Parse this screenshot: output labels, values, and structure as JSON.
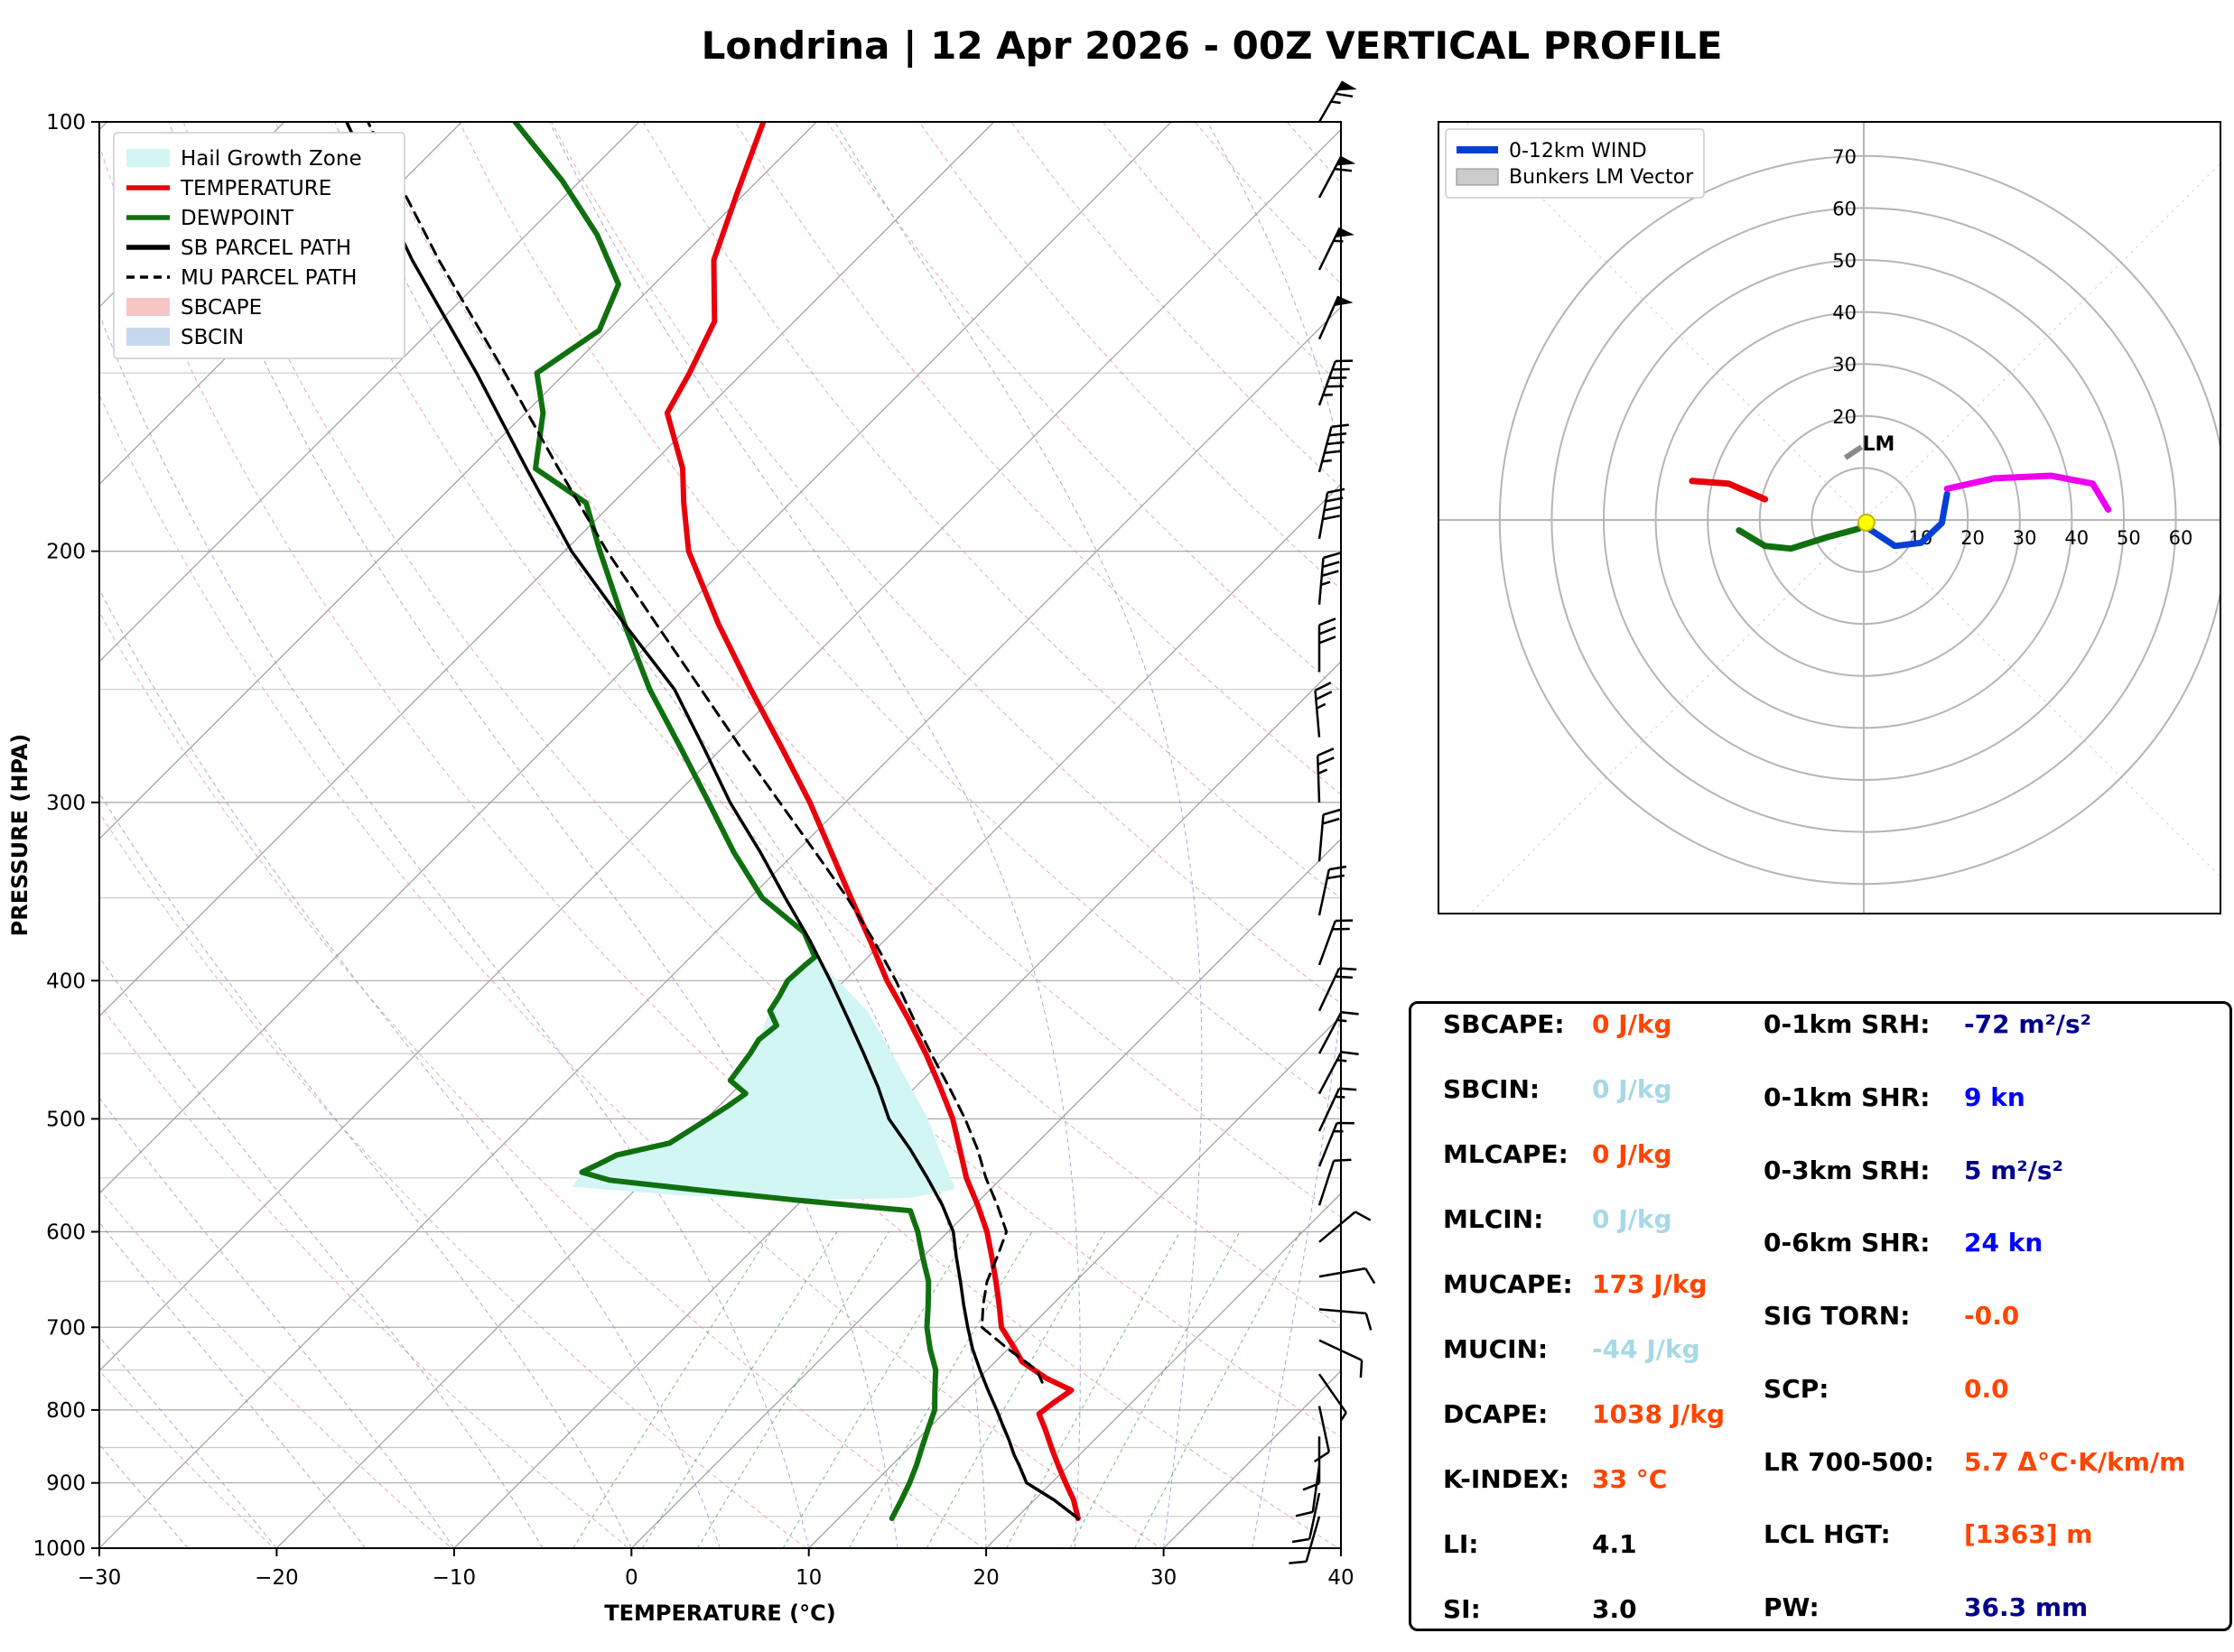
{
  "title": "Londrina | 12 Apr 2026 - 00Z VERTICAL PROFILE",
  "chart_data": [
    {
      "type": "line",
      "name": "skew-t-log-p",
      "xlabel": "TEMPERATURE (°C)",
      "ylabel": "PRESSURE (HPA)",
      "xlim": [
        -30,
        40
      ],
      "plim": [
        100,
        1000
      ],
      "x_ticks": [
        -30,
        -20,
        -10,
        0,
        10,
        20,
        30,
        40
      ],
      "p_ticks": [
        100,
        200,
        300,
        400,
        500,
        600,
        700,
        800,
        900,
        1000
      ],
      "legend": [
        {
          "label": "Hail Growth Zone",
          "kind": "patch",
          "color": "#d2f6f4"
        },
        {
          "label": "TEMPERATURE",
          "kind": "line",
          "color": "#e8000b"
        },
        {
          "label": "DEWPOINT",
          "kind": "line",
          "color": "#107010"
        },
        {
          "label": "SB PARCEL PATH",
          "kind": "line",
          "color": "#000000"
        },
        {
          "label": "MU PARCEL PATH",
          "kind": "line",
          "color": "#000000",
          "dash": true
        },
        {
          "label": "SBCAPE",
          "kind": "patch",
          "color": "#f6c6c6"
        },
        {
          "label": "SBCIN",
          "kind": "patch",
          "color": "#c6d8f0"
        }
      ],
      "series": [
        {
          "name": "TEMPERATURE",
          "color": "#e8000b",
          "width": 6,
          "points": [
            [
              953,
              23.5
            ],
            [
              925,
              22.2
            ],
            [
              900,
              20.8
            ],
            [
              875,
              19.4
            ],
            [
              850,
              18
            ],
            [
              825,
              16.6
            ],
            [
              805,
              15.4
            ],
            [
              790,
              15.6
            ],
            [
              775,
              15.9
            ],
            [
              760,
              13.8
            ],
            [
              740,
              11.5
            ],
            [
              720,
              10
            ],
            [
              700,
              8.4
            ],
            [
              675,
              7
            ],
            [
              650,
              5.5
            ],
            [
              625,
              3.9
            ],
            [
              600,
              2.2
            ],
            [
              575,
              0.2
            ],
            [
              550,
              -2
            ],
            [
              525,
              -4
            ],
            [
              500,
              -6.1
            ],
            [
              475,
              -8.6
            ],
            [
              450,
              -11.3
            ],
            [
              425,
              -14.3
            ],
            [
              400,
              -17.6
            ],
            [
              375,
              -20.8
            ],
            [
              350,
              -24.3
            ],
            [
              325,
              -28
            ],
            [
              300,
              -32
            ],
            [
              275,
              -36.6
            ],
            [
              250,
              -41.7
            ],
            [
              225,
              -47.2
            ],
            [
              200,
              -53
            ],
            [
              185,
              -56
            ],
            [
              175,
              -58
            ],
            [
              160,
              -62
            ],
            [
              150,
              -63
            ],
            [
              138,
              -64.5
            ],
            [
              125,
              -68
            ],
            [
              112,
              -70.5
            ],
            [
              100,
              -73
            ]
          ]
        },
        {
          "name": "DEWPOINT",
          "color": "#107010",
          "width": 6,
          "points": [
            [
              953,
              13
            ],
            [
              925,
              12.5
            ],
            [
              900,
              12
            ],
            [
              875,
              11.4
            ],
            [
              850,
              10.7
            ],
            [
              825,
              10
            ],
            [
              800,
              9.3
            ],
            [
              775,
              8.2
            ],
            [
              750,
              7.1
            ],
            [
              725,
              5.6
            ],
            [
              700,
              4.2
            ],
            [
              675,
              3
            ],
            [
              650,
              1.7
            ],
            [
              625,
              0
            ],
            [
              600,
              -1.7
            ],
            [
              590,
              -2.5
            ],
            [
              580,
              -3.3
            ],
            [
              570,
              -10.4
            ],
            [
              560,
              -17
            ],
            [
              552,
              -22
            ],
            [
              545,
              -24
            ],
            [
              538,
              -23.5
            ],
            [
              530,
              -23
            ],
            [
              520,
              -20.7
            ],
            [
              510,
              -20.3
            ],
            [
              500,
              -19.9
            ],
            [
              490,
              -19.5
            ],
            [
              480,
              -19.2
            ],
            [
              470,
              -20.8
            ],
            [
              460,
              -21
            ],
            [
              450,
              -21.2
            ],
            [
              440,
              -21.5
            ],
            [
              430,
              -21.3
            ],
            [
              420,
              -22.5
            ],
            [
              410,
              -22.8
            ],
            [
              400,
              -23.2
            ],
            [
              390,
              -23.1
            ],
            [
              385,
              -23
            ],
            [
              370,
              -25
            ],
            [
              350,
              -29.3
            ],
            [
              325,
              -33.5
            ],
            [
              300,
              -37.7
            ],
            [
              275,
              -42.3
            ],
            [
              250,
              -47.4
            ],
            [
              225,
              -52.5
            ],
            [
              200,
              -58
            ],
            [
              185,
              -61.5
            ],
            [
              175,
              -66.3
            ],
            [
              160,
              -69
            ],
            [
              150,
              -71.6
            ],
            [
              140,
              -70.5
            ],
            [
              130,
              -72
            ],
            [
              120,
              -76
            ],
            [
              110,
              -81
            ],
            [
              100,
              -87
            ]
          ]
        },
        {
          "name": "SB PARCEL PATH",
          "color": "#000000",
          "width": 3.5,
          "points": [
            [
              953,
              23.5
            ],
            [
              925,
              21.1
            ],
            [
              900,
              18.6
            ],
            [
              875,
              17.2
            ],
            [
              860,
              16.3
            ],
            [
              840,
              15.2
            ],
            [
              820,
              14
            ],
            [
              800,
              12.8
            ],
            [
              775,
              11.2
            ],
            [
              750,
              9.6
            ],
            [
              725,
              8
            ],
            [
              700,
              6.5
            ],
            [
              675,
              5
            ],
            [
              650,
              3.5
            ],
            [
              625,
              1.9
            ],
            [
              600,
              0.3
            ],
            [
              575,
              -1.8
            ],
            [
              550,
              -4.2
            ],
            [
              525,
              -6.8
            ],
            [
              500,
              -9.7
            ],
            [
              475,
              -12.1
            ],
            [
              450,
              -14.8
            ],
            [
              425,
              -17.7
            ],
            [
              400,
              -20.8
            ],
            [
              375,
              -24.2
            ],
            [
              350,
              -28
            ],
            [
              325,
              -32
            ],
            [
              300,
              -36.5
            ],
            [
              275,
              -41
            ],
            [
              250,
              -46
            ],
            [
              225,
              -52.5
            ],
            [
              200,
              -59.6
            ],
            [
              175,
              -66.8
            ],
            [
              150,
              -75
            ],
            [
              125,
              -85
            ],
            [
              100,
              -96.5
            ]
          ]
        },
        {
          "name": "MU PARCEL PATH",
          "color": "#000000",
          "width": 3,
          "dash": true,
          "points": [
            [
              765,
              13.8
            ],
            [
              750,
              12.8
            ],
            [
              725,
              10
            ],
            [
              700,
              7.3
            ],
            [
              675,
              6.1
            ],
            [
              650,
              5
            ],
            [
              625,
              4.2
            ],
            [
              600,
              3.3
            ],
            [
              575,
              1.3
            ],
            [
              550,
              -0.9
            ],
            [
              525,
              -3
            ],
            [
              500,
              -5.4
            ],
            [
              475,
              -8.1
            ],
            [
              450,
              -11
            ],
            [
              425,
              -14
            ],
            [
              400,
              -17.1
            ],
            [
              375,
              -20.6
            ],
            [
              350,
              -24.5
            ],
            [
              325,
              -28.9
            ],
            [
              300,
              -33.7
            ],
            [
              275,
              -38.9
            ],
            [
              250,
              -44.5
            ],
            [
              225,
              -50.7
            ],
            [
              200,
              -57.6
            ],
            [
              175,
              -65
            ],
            [
              150,
              -73.4
            ],
            [
              125,
              -83.5
            ],
            [
              100,
              -95.3
            ]
          ]
        }
      ],
      "hail_zone_polygon": [
        [
          385,
          -23
        ],
        [
          420,
          -17
        ],
        [
          460,
          -12
        ],
        [
          500,
          -7.5
        ],
        [
          530,
          -4.7
        ],
        [
          560,
          -2
        ],
        [
          568,
          -4
        ],
        [
          570,
          -10
        ],
        [
          566,
          -17
        ],
        [
          558,
          -23.7
        ],
        [
          545,
          -24
        ],
        [
          530,
          -23
        ],
        [
          520,
          -20.7
        ],
        [
          510,
          -20.3
        ],
        [
          500,
          -19.9
        ],
        [
          480,
          -19.2
        ],
        [
          470,
          -20.8
        ],
        [
          450,
          -21.2
        ],
        [
          440,
          -21.5
        ],
        [
          420,
          -22.5
        ],
        [
          400,
          -23.2
        ]
      ],
      "hail_zone_color": "#d2f6f4",
      "wind_barbs": [
        [
          100,
          65,
          30
        ],
        [
          113,
          60,
          28
        ],
        [
          127,
          55,
          26
        ],
        [
          142,
          50,
          24
        ],
        [
          158,
          45,
          20
        ],
        [
          176,
          45,
          15
        ],
        [
          196,
          40,
          10
        ],
        [
          218,
          35,
          5
        ],
        [
          243,
          30,
          0
        ],
        [
          270,
          25,
          355
        ],
        [
          300,
          25,
          358
        ],
        [
          330,
          20,
          5
        ],
        [
          360,
          20,
          12
        ],
        [
          390,
          20,
          20
        ],
        [
          420,
          18,
          25
        ],
        [
          450,
          15,
          28
        ],
        [
          480,
          15,
          28
        ],
        [
          510,
          15,
          25
        ],
        [
          540,
          15,
          22
        ],
        [
          575,
          12,
          18
        ],
        [
          610,
          10,
          50
        ],
        [
          645,
          10,
          80
        ],
        [
          680,
          10,
          95
        ],
        [
          715,
          8,
          115
        ],
        [
          755,
          5,
          145
        ],
        [
          795,
          8,
          168
        ],
        [
          835,
          10,
          180
        ],
        [
          875,
          10,
          188
        ],
        [
          915,
          10,
          192
        ],
        [
          950,
          12,
          196
        ]
      ]
    },
    {
      "type": "line",
      "name": "hodograph",
      "rings": [
        10,
        20,
        30,
        40,
        50,
        60,
        70
      ],
      "legend": [
        "0-12km WIND",
        "Bunkers LM Vector"
      ],
      "legend_colors": [
        "#0040d6",
        "#cccccc"
      ],
      "segments": [
        {
          "color": "#e8000b",
          "points": [
            [
              -33,
              7.5
            ],
            [
              -26,
              7
            ],
            [
              -19,
              4
            ]
          ]
        },
        {
          "color": "#107010",
          "points": [
            [
              -24,
              -2
            ],
            [
              -19,
              -5
            ],
            [
              -14,
              -5.5
            ],
            [
              -7,
              -3.3
            ],
            [
              -1,
              -1.7
            ]
          ]
        },
        {
          "color": "#0040d6",
          "points": [
            [
              1,
              -1.7
            ],
            [
              6,
              -5
            ],
            [
              11,
              -4.4
            ],
            [
              15,
              -0.6
            ],
            [
              16,
              5
            ]
          ]
        },
        {
          "color": "#ee00ee",
          "points": [
            [
              16,
              6
            ],
            [
              25,
              8
            ],
            [
              36,
              8.5
            ],
            [
              44,
              7
            ],
            [
              47,
              2
            ]
          ]
        }
      ],
      "storm_marker": {
        "u": 0.5,
        "v": -0.5,
        "color": "#ffff00"
      },
      "lm_marker": {
        "u": -2,
        "v": 13,
        "label": "LM",
        "color": "#8a8a8a"
      }
    }
  ],
  "stats": {
    "left": [
      {
        "label": "SBCAPE:",
        "value": "0 J/kg",
        "color": "#ff4500"
      },
      {
        "label": "SBCIN:",
        "value": "0 J/kg",
        "color": "#a6d8e8"
      },
      {
        "label": "MLCAPE:",
        "value": "0 J/kg",
        "color": "#ff4500"
      },
      {
        "label": "MLCIN:",
        "value": "0 J/kg",
        "color": "#a6d8e8"
      },
      {
        "label": "MUCAPE:",
        "value": "173 J/kg",
        "color": "#ff4500"
      },
      {
        "label": "MUCIN:",
        "value": "-44 J/kg",
        "color": "#a6d8e8"
      },
      {
        "label": "DCAPE:",
        "value": "1038 J/kg",
        "color": "#ff4500"
      },
      {
        "label": "K-INDEX:",
        "value": "33 °C",
        "color": "#ff4500"
      },
      {
        "label": "LI:",
        "value": "4.1",
        "color": "#000000"
      },
      {
        "label": "SI:",
        "value": "3.0",
        "color": "#000000"
      }
    ],
    "right": [
      {
        "label": "0-1km SRH:",
        "value": "-72 m²/s²",
        "color": "#00008b"
      },
      {
        "label": "0-1km SHR:",
        "value": "9 kn",
        "color": "#0000ff"
      },
      {
        "label": "0-3km SRH:",
        "value": "5 m²/s²",
        "color": "#00008b"
      },
      {
        "label": "0-6km SHR:",
        "value": "24 kn",
        "color": "#0000ff"
      },
      {
        "label": "SIG TORN:",
        "value": "-0.0",
        "color": "#ff4500"
      },
      {
        "label": "SCP:",
        "value": "0.0",
        "color": "#ff4500"
      },
      {
        "label": "LR 700-500:",
        "value": "5.7 Δ°C·K/km/m",
        "color": "#ff4500"
      },
      {
        "label": "LCL HGT:",
        "value": "[1363] m",
        "color": "#ff4500"
      },
      {
        "label": "PW:",
        "value": "36.3 mm",
        "color": "#00008b"
      }
    ]
  }
}
